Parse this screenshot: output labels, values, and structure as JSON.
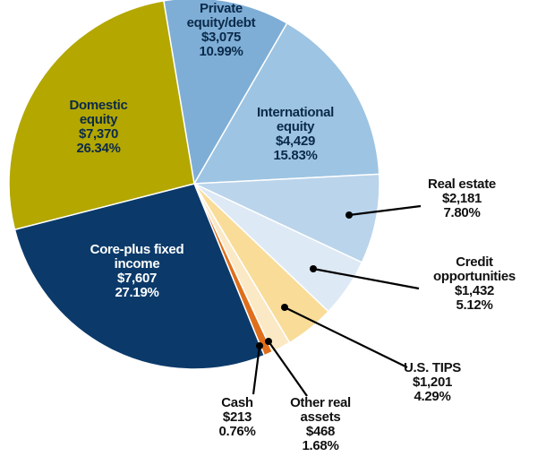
{
  "chart_data": {
    "type": "pie",
    "categories": [
      "Private equity/debt",
      "International equity",
      "Real estate",
      "Credit opportunities",
      "U.S. TIPS",
      "Other real assets",
      "Cash",
      "Core-plus fixed income",
      "Domestic equity"
    ],
    "amounts": [
      "$3,075",
      "$4,429",
      "$2,181",
      "$1,432",
      "$1,201",
      "$468",
      "$213",
      "$7,607",
      "$7,370"
    ],
    "values": [
      10.99,
      15.83,
      7.8,
      5.12,
      4.29,
      1.68,
      0.76,
      27.19,
      26.34
    ],
    "value_labels": [
      "10.99%",
      "15.83%",
      "7.80%",
      "5.12%",
      "4.29%",
      "1.68%",
      "0.76%",
      "27.19%",
      "26.34%"
    ],
    "colors": [
      "#7eaed6",
      "#9dc4e2",
      "#bad4eb",
      "#dde9f5",
      "#f8dc98",
      "#fbe9c6",
      "#df6f1b",
      "#0b3a6a",
      "#b3a700"
    ]
  }
}
